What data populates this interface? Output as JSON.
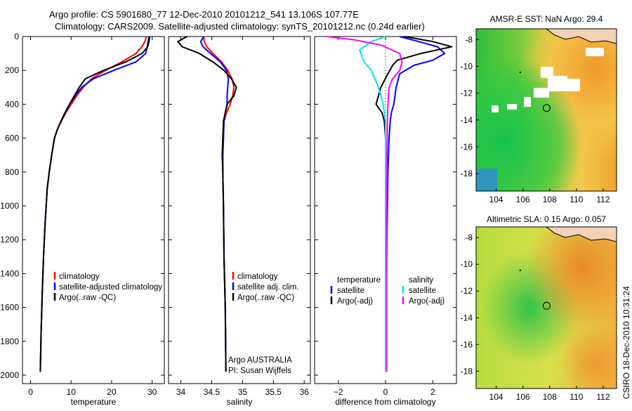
{
  "header": {
    "line1": "Argo profile: CS 5901680_77 12-Dec-2010 20101212_541 13.106S 107.77E",
    "line2": "Climatology: CARS2009. Satellite-adjusted climatology: synTS_20101212.nc (0.24d earlier)"
  },
  "side_text": "CSIRO 18-Dec-2010 10:31:24",
  "colors": {
    "red": "#ff0000",
    "blue": "#0000ff",
    "black": "#000000",
    "cyan": "#00e5ee",
    "magenta": "#ff00ff"
  },
  "chart_data": [
    {
      "type": "line",
      "name": "temperature-panel",
      "xlabel": "temperature",
      "xlim": [
        -2,
        33
      ],
      "ylim": [
        0,
        2050
      ],
      "xticks": [
        0,
        10,
        20,
        30
      ],
      "xtick_labels": [
        "0",
        "10",
        "20",
        "30"
      ],
      "yticks": [
        0,
        200,
        400,
        600,
        800,
        1000,
        1200,
        1400,
        1600,
        1800,
        2000
      ],
      "ytick_labels": [
        "0",
        "200",
        "400",
        "600",
        "800",
        "1000",
        "1200",
        "1400",
        "1600",
        "1800",
        "2000"
      ],
      "legend": [
        {
          "label": "climatology",
          "color": "red"
        },
        {
          "label": "satellite-adjusted climatology",
          "color": "blue"
        },
        {
          "label": "Argo(..raw -QC)",
          "color": "black"
        }
      ],
      "series": [
        {
          "name": "climatology",
          "color": "red",
          "x": [
            28.6,
            28.2,
            27.5,
            26.0,
            22.5,
            18.5,
            15.0,
            13.0,
            11.4,
            10.0,
            8.7,
            7.6,
            6.6,
            5.9,
            5.2,
            4.6,
            4.1,
            3.6,
            3.2,
            2.9,
            2.6,
            2.4
          ],
          "y": [
            0,
            30,
            60,
            100,
            150,
            200,
            250,
            300,
            350,
            400,
            450,
            500,
            550,
            600,
            700,
            800,
            900,
            1100,
            1300,
            1500,
            1750,
            1980
          ]
        },
        {
          "name": "satellite-adjusted climatology",
          "color": "blue",
          "x": [
            29.2,
            29.0,
            28.8,
            28.4,
            26.0,
            20.5,
            15.5,
            12.6,
            11.0,
            9.7,
            8.6,
            7.5,
            6.6,
            5.9,
            5.2,
            4.6,
            4.1,
            3.6,
            3.2,
            2.9,
            2.6,
            2.4
          ],
          "y": [
            0,
            30,
            60,
            100,
            150,
            200,
            250,
            300,
            350,
            400,
            450,
            500,
            550,
            600,
            700,
            800,
            900,
            1100,
            1300,
            1500,
            1750,
            1980
          ]
        },
        {
          "name": "Argo(..raw -QC)",
          "color": "black",
          "x": [
            29.4,
            29.2,
            28.9,
            27.5,
            23.5,
            18.0,
            13.5,
            12.0,
            10.8,
            9.6,
            8.5,
            7.5,
            6.6,
            5.9,
            5.2,
            4.6,
            4.1,
            3.6,
            3.2,
            2.9,
            2.6,
            2.4
          ],
          "y": [
            0,
            30,
            60,
            100,
            150,
            200,
            250,
            300,
            350,
            400,
            450,
            500,
            550,
            600,
            700,
            800,
            900,
            1100,
            1300,
            1500,
            1750,
            1980
          ]
        }
      ]
    },
    {
      "type": "line",
      "name": "salinity-panel",
      "xlabel": "salinity",
      "xlim": [
        33.8,
        36.1
      ],
      "ylim": [
        0,
        2050
      ],
      "xticks": [
        34,
        34.5,
        35,
        35.5,
        36
      ],
      "xtick_labels": [
        "34",
        "34.5",
        "35",
        "35.5",
        "36"
      ],
      "legend": [
        {
          "label": "climatology",
          "color": "red"
        },
        {
          "label": "satellite adj. clim.",
          "color": "blue"
        },
        {
          "label": "Argo(..raw -QC)",
          "color": "black"
        }
      ],
      "annotations": [
        "Argo AUSTRALIA",
        "PI: Susan Wijffels"
      ],
      "series": [
        {
          "name": "climatology",
          "color": "red",
          "x": [
            34.37,
            34.38,
            34.42,
            34.52,
            34.66,
            34.76,
            34.83,
            34.86,
            34.84,
            34.8,
            34.74,
            34.7,
            34.69,
            34.68,
            34.68,
            34.69,
            34.7,
            34.72,
            34.73
          ],
          "y": [
            0,
            30,
            60,
            100,
            150,
            200,
            250,
            300,
            350,
            400,
            450,
            500,
            600,
            700,
            800,
            1000,
            1300,
            1600,
            1980
          ]
        },
        {
          "name": "satellite adj. clim.",
          "color": "blue",
          "x": [
            34.37,
            34.32,
            34.36,
            34.48,
            34.64,
            34.74,
            34.77,
            34.76,
            34.75,
            34.75,
            34.72,
            34.7,
            34.69,
            34.68,
            34.68,
            34.69,
            34.7,
            34.72,
            34.73
          ],
          "y": [
            0,
            30,
            60,
            100,
            150,
            200,
            250,
            300,
            350,
            400,
            450,
            500,
            600,
            700,
            800,
            1000,
            1300,
            1600,
            1980
          ]
        },
        {
          "name": "Argo(..raw -QC)",
          "color": "black",
          "x": [
            34.1,
            33.95,
            34.02,
            34.3,
            34.52,
            34.7,
            34.82,
            34.9,
            34.86,
            34.75,
            34.72,
            34.69,
            34.68,
            34.67,
            34.68,
            34.69,
            34.7,
            34.72,
            34.73
          ],
          "y": [
            0,
            30,
            60,
            100,
            150,
            200,
            250,
            300,
            350,
            400,
            450,
            500,
            600,
            700,
            800,
            1000,
            1300,
            1600,
            1980
          ]
        }
      ]
    },
    {
      "type": "line",
      "name": "difference-panel",
      "xlabel": "difference from climatology",
      "xlim": [
        -3,
        3
      ],
      "ylim": [
        0,
        2050
      ],
      "xticks": [
        -2,
        0,
        2
      ],
      "xtick_labels": [
        "−2",
        "0",
        "2"
      ],
      "legend_groups": [
        {
          "title": "temperature",
          "items": [
            {
              "label": "satellite",
              "color": "blue"
            },
            {
              "label": "Argo(-adj)",
              "color": "black"
            }
          ]
        },
        {
          "title": "salinity",
          "items": [
            {
              "label": "satellite",
              "color": "cyan"
            },
            {
              "label": "Argo(-adj)",
              "color": "magenta"
            }
          ]
        }
      ],
      "series": [
        {
          "name": "temperature satellite",
          "color": "blue",
          "x": [
            0.6,
            1.4,
            2.2,
            2.5,
            2.0,
            1.2,
            0.6,
            0.45,
            0.4,
            0.35,
            0.25,
            0.2,
            0.15,
            0.1,
            0.08,
            0.05,
            0.03,
            0.0
          ],
          "y": [
            0,
            30,
            60,
            100,
            140,
            170,
            220,
            300,
            350,
            400,
            450,
            500,
            600,
            800,
            1000,
            1300,
            1600,
            1980
          ]
        },
        {
          "name": "temperature Argo(-adj)",
          "color": "black",
          "x": [
            0.8,
            2.0,
            2.8,
            1.5,
            0.5,
            0.3,
            0.1,
            -0.2,
            -0.3,
            -0.4,
            -0.15,
            -0.05,
            0.0,
            0.0,
            0.0,
            0.0,
            0.0,
            0.0
          ],
          "y": [
            0,
            30,
            60,
            100,
            140,
            170,
            220,
            300,
            350,
            400,
            450,
            500,
            600,
            800,
            1000,
            1300,
            1600,
            1980
          ]
        },
        {
          "name": "salinity satellite",
          "color": "cyan",
          "x": [
            0.0,
            -0.6,
            -1.1,
            -0.9,
            -0.6,
            -0.45,
            -0.3,
            -0.1,
            0.0,
            0.0,
            0.0,
            0.0,
            0.0,
            0.0
          ],
          "y": [
            0,
            30,
            80,
            150,
            200,
            250,
            300,
            400,
            500,
            600,
            800,
            1000,
            1300,
            1980
          ]
        },
        {
          "name": "salinity Argo(-adj)",
          "color": "magenta",
          "x": [
            -2.5,
            -1.3,
            -0.2,
            0.6,
            0.7,
            0.6,
            0.3,
            0.15,
            0.1,
            0.08,
            0.06,
            0.05,
            0.05,
            0.05
          ],
          "y": [
            0,
            20,
            50,
            100,
            150,
            200,
            250,
            300,
            400,
            500,
            700,
            1000,
            1300,
            1980
          ]
        }
      ]
    },
    {
      "type": "heatmap",
      "name": "sst-map",
      "title": "AMSR-E SST: NaN Argo: 29.4",
      "xlim": [
        102.5,
        113
      ],
      "ylim": [
        -19.3,
        -7.2
      ],
      "xticks": [
        104,
        106,
        108,
        110,
        112
      ],
      "xtick_labels": [
        "104",
        "106",
        "108",
        "110",
        "112"
      ],
      "yticks": [
        -8,
        -10,
        -12,
        -14,
        -16,
        -18
      ],
      "ytick_labels": [
        "-8",
        "-10",
        "-12",
        "-14",
        "-16",
        "-18"
      ],
      "argo_position": {
        "lon": 107.77,
        "lat": -13.106
      }
    },
    {
      "type": "heatmap",
      "name": "sla-map",
      "title": "Altimetric SLA: 0.15 Argo: 0.057",
      "xlim": [
        102.5,
        113
      ],
      "ylim": [
        -19.3,
        -7.2
      ],
      "xticks": [
        104,
        106,
        108,
        110,
        112
      ],
      "xtick_labels": [
        "104",
        "106",
        "108",
        "110",
        "112"
      ],
      "yticks": [
        -8,
        -10,
        -12,
        -14,
        -16,
        -18
      ],
      "ytick_labels": [
        "-8",
        "-10",
        "-12",
        "-14",
        "-16",
        "-18"
      ],
      "argo_position": {
        "lon": 107.77,
        "lat": -13.106
      }
    }
  ]
}
